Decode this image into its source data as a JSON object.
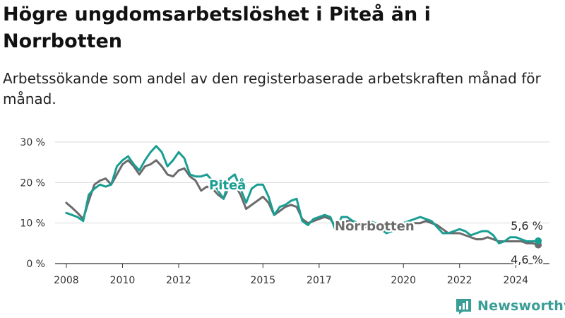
{
  "header": {
    "title": "Högre ungdomsarbetslöshet i Piteå än i Norrbotten",
    "subtitle": "Arbetssökande som andel av den registerbaserade arbetskraften månad för månad."
  },
  "brand": {
    "name": "Newsworthy",
    "icon": "newsworthy-logo-icon"
  },
  "chart_data": {
    "type": "line",
    "x_unit": "year",
    "xlim": [
      2007.6,
      2025.2
    ],
    "ylim": [
      0,
      30
    ],
    "yticks": [
      0,
      10,
      20,
      30
    ],
    "ytick_labels": [
      "0 %",
      "10 %",
      "20 %",
      "30 %"
    ],
    "xticks": [
      2008,
      2010,
      2012,
      2015,
      2017,
      2020,
      2022,
      2024
    ],
    "xtick_labels": [
      "2008",
      "2010",
      "2012",
      "2015",
      "2017",
      "2020",
      "2022",
      "2024"
    ],
    "grid": "horizontal",
    "legend": "inline labels",
    "series": [
      {
        "name": "Norrbotten",
        "color": "#6b6b6b",
        "end_label": "4,6 %",
        "x": [
          2008.0,
          2008.2,
          2008.4,
          2008.6,
          2008.8,
          2009.0,
          2009.2,
          2009.4,
          2009.6,
          2009.8,
          2010.0,
          2010.2,
          2010.4,
          2010.6,
          2010.8,
          2011.0,
          2011.2,
          2011.4,
          2011.6,
          2011.8,
          2012.0,
          2012.2,
          2012.4,
          2012.6,
          2012.8,
          2013.0,
          2013.2,
          2013.4,
          2013.6,
          2013.8,
          2014.0,
          2014.2,
          2014.4,
          2014.6,
          2014.8,
          2015.0,
          2015.2,
          2015.4,
          2015.6,
          2015.8,
          2016.0,
          2016.2,
          2016.4,
          2016.6,
          2016.8,
          2017.0,
          2017.2,
          2017.4,
          2017.6,
          2017.8,
          2018.0,
          2018.2,
          2018.4,
          2018.6,
          2018.8,
          2019.0,
          2019.2,
          2019.4,
          2019.6,
          2019.8,
          2020.0,
          2020.2,
          2020.4,
          2020.6,
          2020.8,
          2021.0,
          2021.2,
          2021.4,
          2021.6,
          2021.8,
          2022.0,
          2022.2,
          2022.4,
          2022.6,
          2022.8,
          2023.0,
          2023.2,
          2023.4,
          2023.6,
          2023.8,
          2024.0,
          2024.2,
          2024.4,
          2024.6,
          2024.8
        ],
        "y": [
          15.0,
          13.8,
          12.5,
          11.0,
          15.5,
          19.5,
          20.5,
          21.0,
          19.5,
          22.0,
          24.5,
          25.5,
          24.0,
          22.0,
          24.0,
          24.5,
          25.5,
          24.0,
          22.0,
          21.5,
          23.0,
          23.5,
          21.5,
          20.5,
          18.0,
          19.0,
          18.5,
          17.0,
          16.0,
          19.0,
          19.5,
          17.0,
          13.5,
          14.5,
          15.5,
          16.5,
          15.0,
          12.0,
          13.0,
          14.0,
          14.5,
          14.0,
          11.0,
          10.0,
          10.5,
          11.0,
          11.5,
          11.0,
          9.0,
          10.0,
          10.5,
          10.5,
          9.5,
          9.0,
          9.0,
          9.5,
          9.0,
          8.5,
          8.5,
          9.0,
          9.5,
          9.5,
          10.0,
          10.0,
          10.5,
          10.0,
          9.5,
          8.5,
          7.5,
          7.5,
          7.5,
          7.0,
          6.5,
          6.0,
          6.0,
          6.5,
          6.0,
          5.5,
          5.5,
          5.5,
          5.5,
          5.5,
          5.0,
          5.0,
          4.6
        ]
      },
      {
        "name": "Piteå",
        "color": "#1a9e93",
        "end_label": "5,6 %",
        "x": [
          2008.0,
          2008.2,
          2008.4,
          2008.6,
          2008.8,
          2009.0,
          2009.2,
          2009.4,
          2009.6,
          2009.8,
          2010.0,
          2010.2,
          2010.4,
          2010.6,
          2010.8,
          2011.0,
          2011.2,
          2011.4,
          2011.6,
          2011.8,
          2012.0,
          2012.2,
          2012.4,
          2012.6,
          2012.8,
          2013.0,
          2013.2,
          2013.4,
          2013.6,
          2013.8,
          2014.0,
          2014.2,
          2014.4,
          2014.6,
          2014.8,
          2015.0,
          2015.2,
          2015.4,
          2015.6,
          2015.8,
          2016.0,
          2016.2,
          2016.4,
          2016.6,
          2016.8,
          2017.0,
          2017.2,
          2017.4,
          2017.6,
          2017.8,
          2018.0,
          2018.2,
          2018.4,
          2018.6,
          2018.8,
          2019.0,
          2019.2,
          2019.4,
          2019.6,
          2019.8,
          2020.0,
          2020.2,
          2020.4,
          2020.6,
          2020.8,
          2021.0,
          2021.2,
          2021.4,
          2021.6,
          2021.8,
          2022.0,
          2022.2,
          2022.4,
          2022.6,
          2022.8,
          2023.0,
          2023.2,
          2023.4,
          2023.6,
          2023.8,
          2024.0,
          2024.2,
          2024.4,
          2024.6,
          2024.8
        ],
        "y": [
          12.5,
          12.0,
          11.5,
          10.5,
          17.0,
          18.5,
          19.5,
          19.0,
          19.5,
          24.0,
          25.5,
          26.5,
          24.5,
          23.0,
          25.5,
          27.5,
          29.0,
          27.5,
          24.0,
          25.5,
          27.5,
          26.0,
          22.0,
          21.5,
          21.5,
          22.0,
          20.5,
          18.0,
          16.0,
          21.0,
          22.0,
          18.5,
          15.0,
          18.5,
          19.5,
          19.5,
          16.5,
          12.0,
          14.0,
          14.5,
          15.5,
          16.0,
          10.5,
          9.5,
          11.0,
          11.5,
          12.0,
          11.5,
          8.0,
          11.5,
          11.5,
          10.5,
          10.0,
          9.5,
          10.5,
          10.0,
          8.5,
          7.5,
          8.0,
          9.0,
          10.0,
          10.5,
          11.0,
          11.5,
          11.0,
          10.5,
          9.0,
          7.5,
          7.5,
          8.0,
          8.5,
          8.0,
          7.0,
          7.5,
          8.0,
          8.0,
          7.0,
          5.0,
          5.5,
          6.5,
          6.5,
          6.0,
          5.5,
          5.5,
          5.6
        ]
      }
    ]
  }
}
